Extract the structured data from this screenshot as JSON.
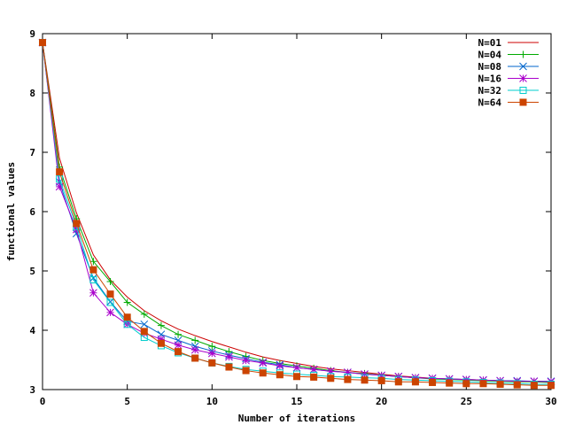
{
  "chart_data": {
    "type": "line",
    "title": "",
    "xlabel": "Number of iterations",
    "ylabel": "functional values",
    "xlim": [
      0,
      30
    ],
    "ylim": [
      3,
      9
    ],
    "xticks": [
      0,
      5,
      10,
      15,
      20,
      25,
      30
    ],
    "yticks": [
      3,
      4,
      5,
      6,
      7,
      8,
      9
    ],
    "grid": false,
    "legend_position": "top-right",
    "x": [
      0,
      1,
      2,
      3,
      4,
      5,
      6,
      7,
      8,
      9,
      10,
      11,
      12,
      13,
      14,
      15,
      16,
      17,
      18,
      19,
      20,
      21,
      22,
      23,
      24,
      25,
      26,
      27,
      28,
      29,
      30
    ],
    "series": [
      {
        "name": "N=01",
        "color": "#cc0000",
        "marker": "none",
        "values": [
          8.85,
          6.9,
          5.98,
          5.27,
          4.85,
          4.56,
          4.33,
          4.16,
          4.02,
          3.91,
          3.81,
          3.72,
          3.63,
          3.55,
          3.49,
          3.44,
          3.39,
          3.35,
          3.32,
          3.29,
          3.26,
          3.23,
          3.21,
          3.19,
          3.18,
          3.17,
          3.16,
          3.15,
          3.14,
          3.14,
          3.13
        ]
      },
      {
        "name": "N=04",
        "color": "#00aa00",
        "marker": "plus",
        "values": [
          8.85,
          6.75,
          5.88,
          5.16,
          4.82,
          4.47,
          4.27,
          4.08,
          3.93,
          3.83,
          3.73,
          3.64,
          3.56,
          3.49,
          3.44,
          3.4,
          3.36,
          3.32,
          3.29,
          3.27,
          3.24,
          3.22,
          3.2,
          3.18,
          3.17,
          3.16,
          3.15,
          3.14,
          3.13,
          3.13,
          3.12
        ]
      },
      {
        "name": "N=08",
        "color": "#0066cc",
        "marker": "cross",
        "values": [
          8.85,
          6.5,
          5.63,
          4.88,
          4.48,
          4.15,
          4.1,
          3.93,
          3.83,
          3.73,
          3.65,
          3.58,
          3.52,
          3.46,
          3.42,
          3.37,
          3.34,
          3.31,
          3.29,
          3.26,
          3.24,
          3.22,
          3.2,
          3.19,
          3.18,
          3.17,
          3.16,
          3.15,
          3.15,
          3.14,
          3.14
        ]
      },
      {
        "name": "N=16",
        "color": "#aa00cc",
        "marker": "star",
        "values": [
          8.85,
          6.42,
          5.7,
          4.63,
          4.3,
          4.1,
          3.95,
          3.85,
          3.75,
          3.67,
          3.61,
          3.55,
          3.49,
          3.45,
          3.4,
          3.37,
          3.34,
          3.31,
          3.29,
          3.26,
          3.24,
          3.22,
          3.2,
          3.19,
          3.18,
          3.17,
          3.16,
          3.15,
          3.14,
          3.14,
          3.13
        ]
      },
      {
        "name": "N=32",
        "color": "#00cccc",
        "marker": "open-square",
        "values": [
          8.85,
          6.55,
          5.75,
          4.85,
          4.47,
          4.1,
          3.88,
          3.74,
          3.62,
          3.53,
          3.45,
          3.39,
          3.34,
          3.31,
          3.28,
          3.26,
          3.24,
          3.22,
          3.21,
          3.2,
          3.19,
          3.17,
          3.16,
          3.15,
          3.14,
          3.13,
          3.12,
          3.11,
          3.1,
          3.09,
          3.09
        ]
      },
      {
        "name": "N=64",
        "color": "#cc4400",
        "marker": "filled-square",
        "values": [
          8.85,
          6.67,
          5.8,
          5.02,
          4.61,
          4.22,
          3.98,
          3.78,
          3.64,
          3.53,
          3.45,
          3.38,
          3.32,
          3.28,
          3.25,
          3.22,
          3.21,
          3.19,
          3.17,
          3.16,
          3.15,
          3.13,
          3.13,
          3.12,
          3.11,
          3.1,
          3.1,
          3.09,
          3.08,
          3.07,
          3.07
        ]
      }
    ]
  }
}
